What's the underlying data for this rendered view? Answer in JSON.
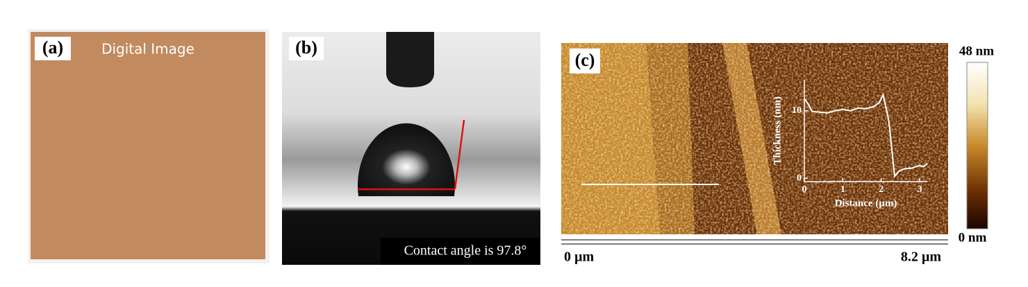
{
  "panels": [
    {
      "label": "(a)",
      "caption": "Digital Image"
    },
    {
      "label": "(b)",
      "caption": "Contact angle is 97.8°"
    },
    {
      "label": "(c)",
      "scale_start": "0 µm",
      "scale_end": "8.2 µm",
      "colorbar_max": "48 nm",
      "colorbar_min": "0 nm",
      "inset": {
        "x_label": "Distance (µm)",
        "y_label": "Thickness (nm)",
        "xlim": [
          0,
          3.2
        ],
        "ylim": [
          -0.5,
          14.6
        ],
        "xticks": [
          0,
          1,
          2,
          3
        ],
        "yticks": [
          0,
          10
        ],
        "x": [
          0,
          0.1,
          0.2,
          0.4,
          0.6,
          0.8,
          1.0,
          1.2,
          1.4,
          1.6,
          1.8,
          1.95,
          2.05,
          2.2,
          2.3,
          2.35,
          2.45,
          2.6,
          2.8,
          3.0,
          3.1,
          3.2
        ],
        "y": [
          11.8,
          11.0,
          9.9,
          9.8,
          9.7,
          10.0,
          10.2,
          10.0,
          10.4,
          10.3,
          10.6,
          11.2,
          12.4,
          8.5,
          3.0,
          0.3,
          1.0,
          1.4,
          1.5,
          1.9,
          1.7,
          2.2
        ]
      }
    }
  ]
}
